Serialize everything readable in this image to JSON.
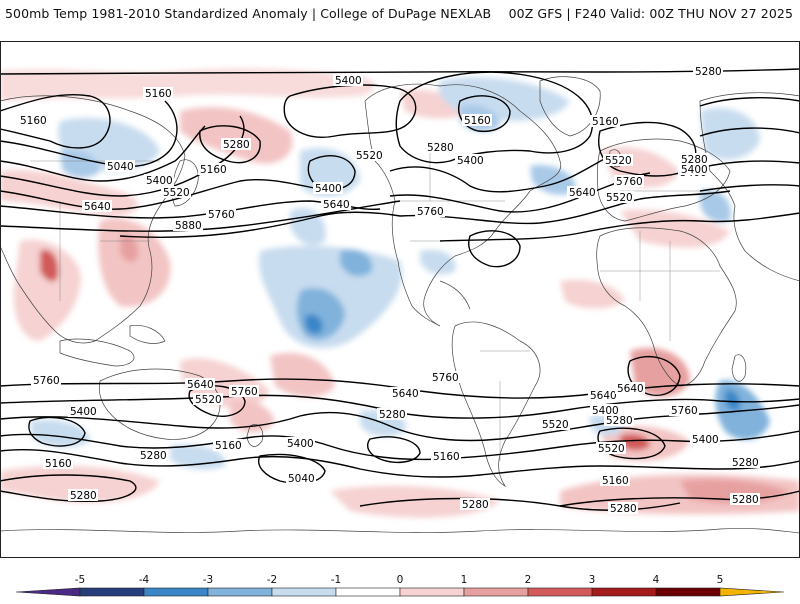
{
  "header": {
    "title_left": "500mb Temp 1981-2010 Standardized Anomaly | College of DuPage NEXLAB",
    "title_right": "00Z GFS | F240 Valid: 00Z THU NOV 27 2025"
  },
  "colorbar": {
    "ticks": [
      "-5",
      "-4",
      "-3",
      "-2",
      "-1",
      "0",
      "1",
      "2",
      "3",
      "4",
      "5"
    ],
    "colors": [
      "#4b2a86",
      "#263f7a",
      "#3b86c8",
      "#80b2dc",
      "#c8dcef",
      "#ffffff",
      "#f6d2d2",
      "#e7a0a0",
      "#d25a5a",
      "#a51a1a",
      "#6b0000",
      "#f2b400"
    ]
  },
  "contour_labels": [
    {
      "value": "5160"
    },
    {
      "value": "5400"
    },
    {
      "value": "5280"
    },
    {
      "value": "5160"
    },
    {
      "value": "5040"
    },
    {
      "value": "5160"
    },
    {
      "value": "5400"
    },
    {
      "value": "5520"
    },
    {
      "value": "5280"
    },
    {
      "value": "5400"
    },
    {
      "value": "5520"
    },
    {
      "value": "5160"
    },
    {
      "value": "5400"
    },
    {
      "value": "5520"
    },
    {
      "value": "5640"
    },
    {
      "value": "5760"
    },
    {
      "value": "5880"
    },
    {
      "value": "5640"
    },
    {
      "value": "5760"
    },
    {
      "value": "5280"
    },
    {
      "value": "5160"
    },
    {
      "value": "5400"
    },
    {
      "value": "5520"
    },
    {
      "value": "5640"
    },
    {
      "value": "5760"
    },
    {
      "value": "5280"
    },
    {
      "value": "5400"
    },
    {
      "value": "5760"
    },
    {
      "value": "5640"
    },
    {
      "value": "5520"
    },
    {
      "value": "5760"
    },
    {
      "value": "5400"
    },
    {
      "value": "5160"
    },
    {
      "value": "5280"
    },
    {
      "value": "5640"
    },
    {
      "value": "5520"
    },
    {
      "value": "5760"
    },
    {
      "value": "5640"
    },
    {
      "value": "5400"
    },
    {
      "value": "5280"
    },
    {
      "value": "5520"
    },
    {
      "value": "5400"
    },
    {
      "value": "5280"
    },
    {
      "value": "5160"
    },
    {
      "value": "5040"
    },
    {
      "value": "5280"
    },
    {
      "value": "5160"
    },
    {
      "value": "5280"
    },
    {
      "value": "5640"
    },
    {
      "value": "5760"
    },
    {
      "value": "5400"
    },
    {
      "value": "5280"
    },
    {
      "value": "5160"
    },
    {
      "value": "5280"
    },
    {
      "value": "5280"
    }
  ]
}
